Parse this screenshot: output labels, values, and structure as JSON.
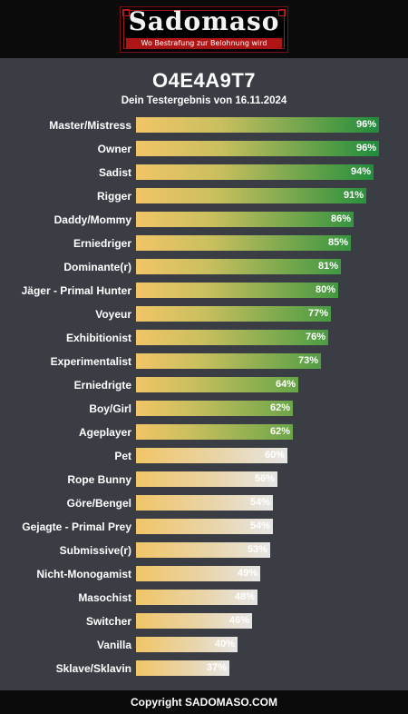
{
  "header": {
    "logo_text": "Sadomaso",
    "logo_tagline": "Wo Bestrafung zur Belohnung wird"
  },
  "result_id": "O4E4A9T7",
  "subtitle": "Dein Testergebnis von 16.11.2024",
  "colors": {
    "background": "#3a3d44",
    "bar_start": "#f1c567",
    "bar_high_end": "#1f8c3c",
    "bar_low_end": "#e6e6e6"
  },
  "chart_data": {
    "type": "bar",
    "orientation": "horizontal",
    "categories": [
      "Master/Mistress",
      "Owner",
      "Sadist",
      "Rigger",
      "Daddy/Mommy",
      "Erniedriger",
      "Dominante(r)",
      "Jäger - Primal Hunter",
      "Voyeur",
      "Exhibitionist",
      "Experimentalist",
      "Erniedrigte",
      "Boy/Girl",
      "Ageplayer",
      "Pet",
      "Rope Bunny",
      "Göre/Bengel",
      "Gejagte - Primal Prey",
      "Submissive(r)",
      "Nicht-Monogamist",
      "Masochist",
      "Switcher",
      "Vanilla",
      "Sklave/Sklavin"
    ],
    "values": [
      96,
      96,
      94,
      91,
      86,
      85,
      81,
      80,
      77,
      76,
      73,
      64,
      62,
      62,
      60,
      56,
      54,
      54,
      53,
      49,
      48,
      46,
      40,
      37
    ],
    "value_suffix": "%",
    "xlim": [
      0,
      100
    ]
  },
  "footer": {
    "copyright": "Copyright SADOMASO.COM"
  }
}
